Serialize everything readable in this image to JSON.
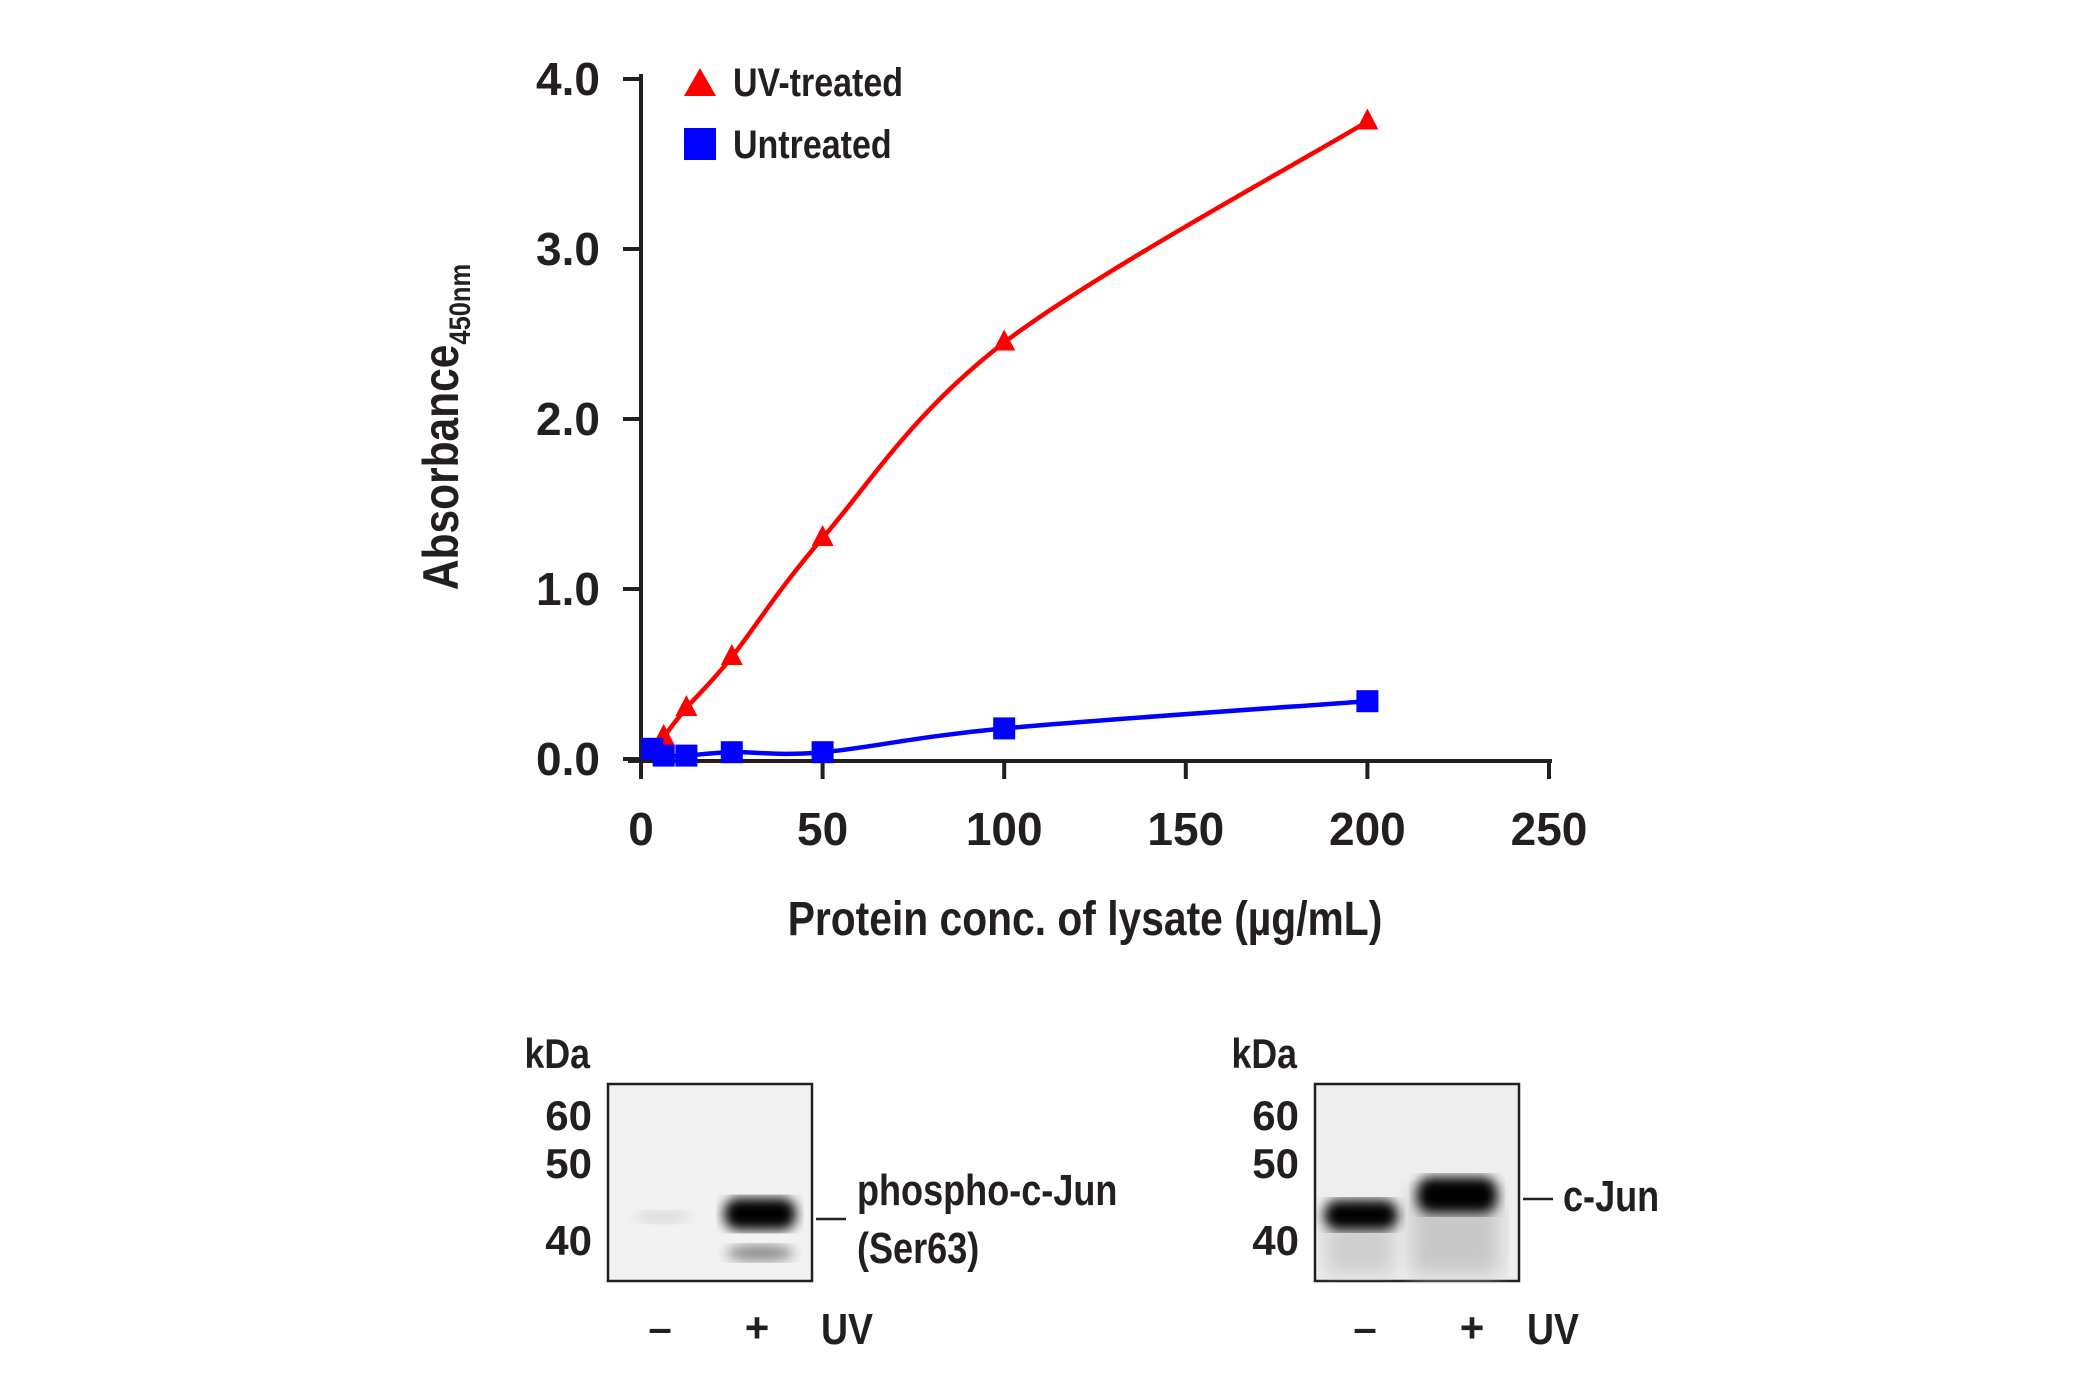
{
  "chart_data": {
    "type": "line",
    "xlabel": "Protein conc. of lysate (µg/mL)",
    "ylabel": "Absorbance",
    "ylabel_subscript": "450nm",
    "xlim": [
      0,
      250
    ],
    "ylim": [
      0,
      4.0
    ],
    "xticks": [
      "0",
      "50",
      "100",
      "150",
      "200",
      "250"
    ],
    "xtick_values": [
      0,
      50,
      100,
      150,
      200,
      250
    ],
    "yticks": [
      "0.0",
      "1.0",
      "2.0",
      "3.0",
      "4.0"
    ],
    "ytick_values": [
      0,
      1,
      2,
      3,
      4
    ],
    "grid": false,
    "legend_position": "top-left",
    "series": [
      {
        "name": "UV-treated",
        "color": "#ff0000",
        "marker": "triangle",
        "x": [
          6.25,
          12.5,
          25,
          50,
          100,
          200
        ],
        "values": [
          0.13,
          0.3,
          0.6,
          1.3,
          2.45,
          3.75
        ]
      },
      {
        "name": "Untreated",
        "color": "#0000ff",
        "marker": "square",
        "x": [
          3.125,
          6.25,
          12.5,
          25,
          50,
          100,
          200
        ],
        "values": [
          0.06,
          0.02,
          0.02,
          0.04,
          0.04,
          0.18,
          0.34
        ]
      }
    ]
  },
  "blots": [
    {
      "kda_label": "kDa",
      "markers": [
        "60",
        "50",
        "40"
      ],
      "band_label_1": "phospho-c-Jun",
      "band_label_2": "(Ser63)",
      "lane_minus": "–",
      "lane_plus": "+",
      "treatment": "UV"
    },
    {
      "kda_label": "kDa",
      "markers": [
        "60",
        "50",
        "40"
      ],
      "band_label_1": "c-Jun",
      "band_label_2": "",
      "lane_minus": "–",
      "lane_plus": "+",
      "treatment": "UV"
    }
  ]
}
